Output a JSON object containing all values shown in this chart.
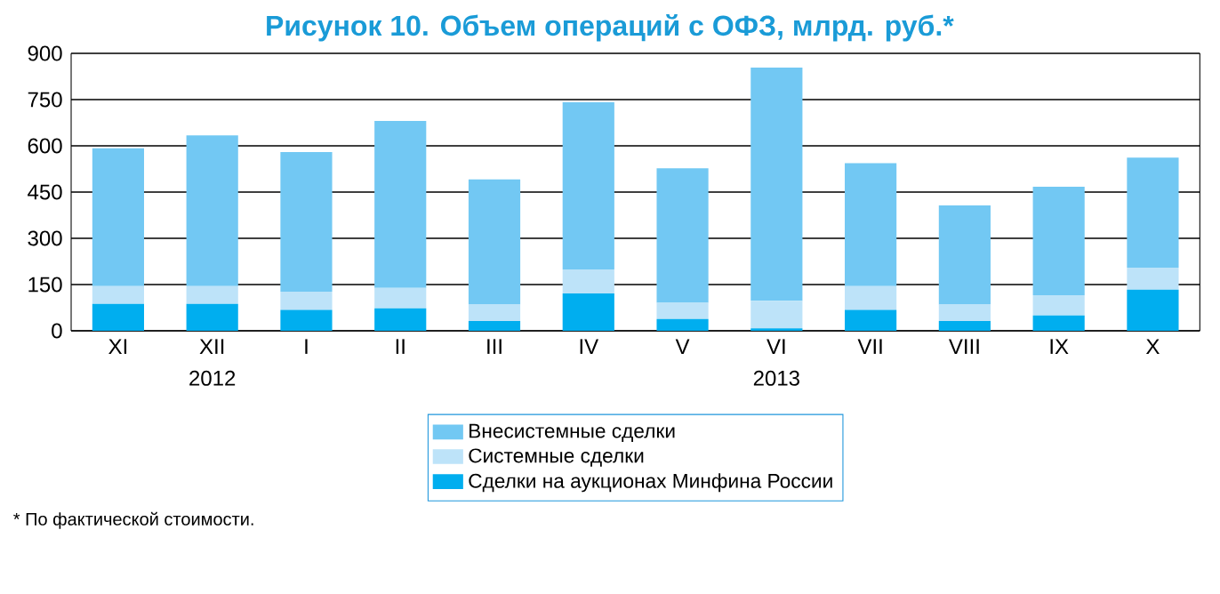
{
  "chart_data": {
    "type": "bar",
    "stacked": true,
    "title": "Рисунок 10. Объем операций с ОФЗ, млрд. руб.*",
    "categories": [
      "XI",
      "XII",
      "I",
      "II",
      "III",
      "IV",
      "V",
      "VI",
      "VII",
      "VIII",
      "IX",
      "X"
    ],
    "series": [
      {
        "name": "Сделки на аукционах Минфина России",
        "color": "#00aeef",
        "values": [
          87,
          87,
          68,
          73,
          32,
          121,
          38,
          8,
          68,
          32,
          50,
          133
        ]
      },
      {
        "name": "Системные сделки",
        "color": "#bde3f9",
        "values": [
          58,
          58,
          59,
          66,
          53,
          78,
          53,
          89,
          77,
          53,
          65,
          72
        ]
      },
      {
        "name": "Внесистемные сделки",
        "color": "#72c8f3",
        "values": [
          447,
          489,
          453,
          542,
          406,
          542,
          436,
          757,
          399,
          322,
          352,
          357
        ]
      }
    ],
    "ylim": [
      0,
      900
    ],
    "yticks": [
      0,
      150,
      300,
      450,
      600,
      750,
      900
    ],
    "grid": "y",
    "legend": "bottom",
    "annotations": [
      "2012",
      "2013",
      "* По фактической стоимости."
    ]
  }
}
